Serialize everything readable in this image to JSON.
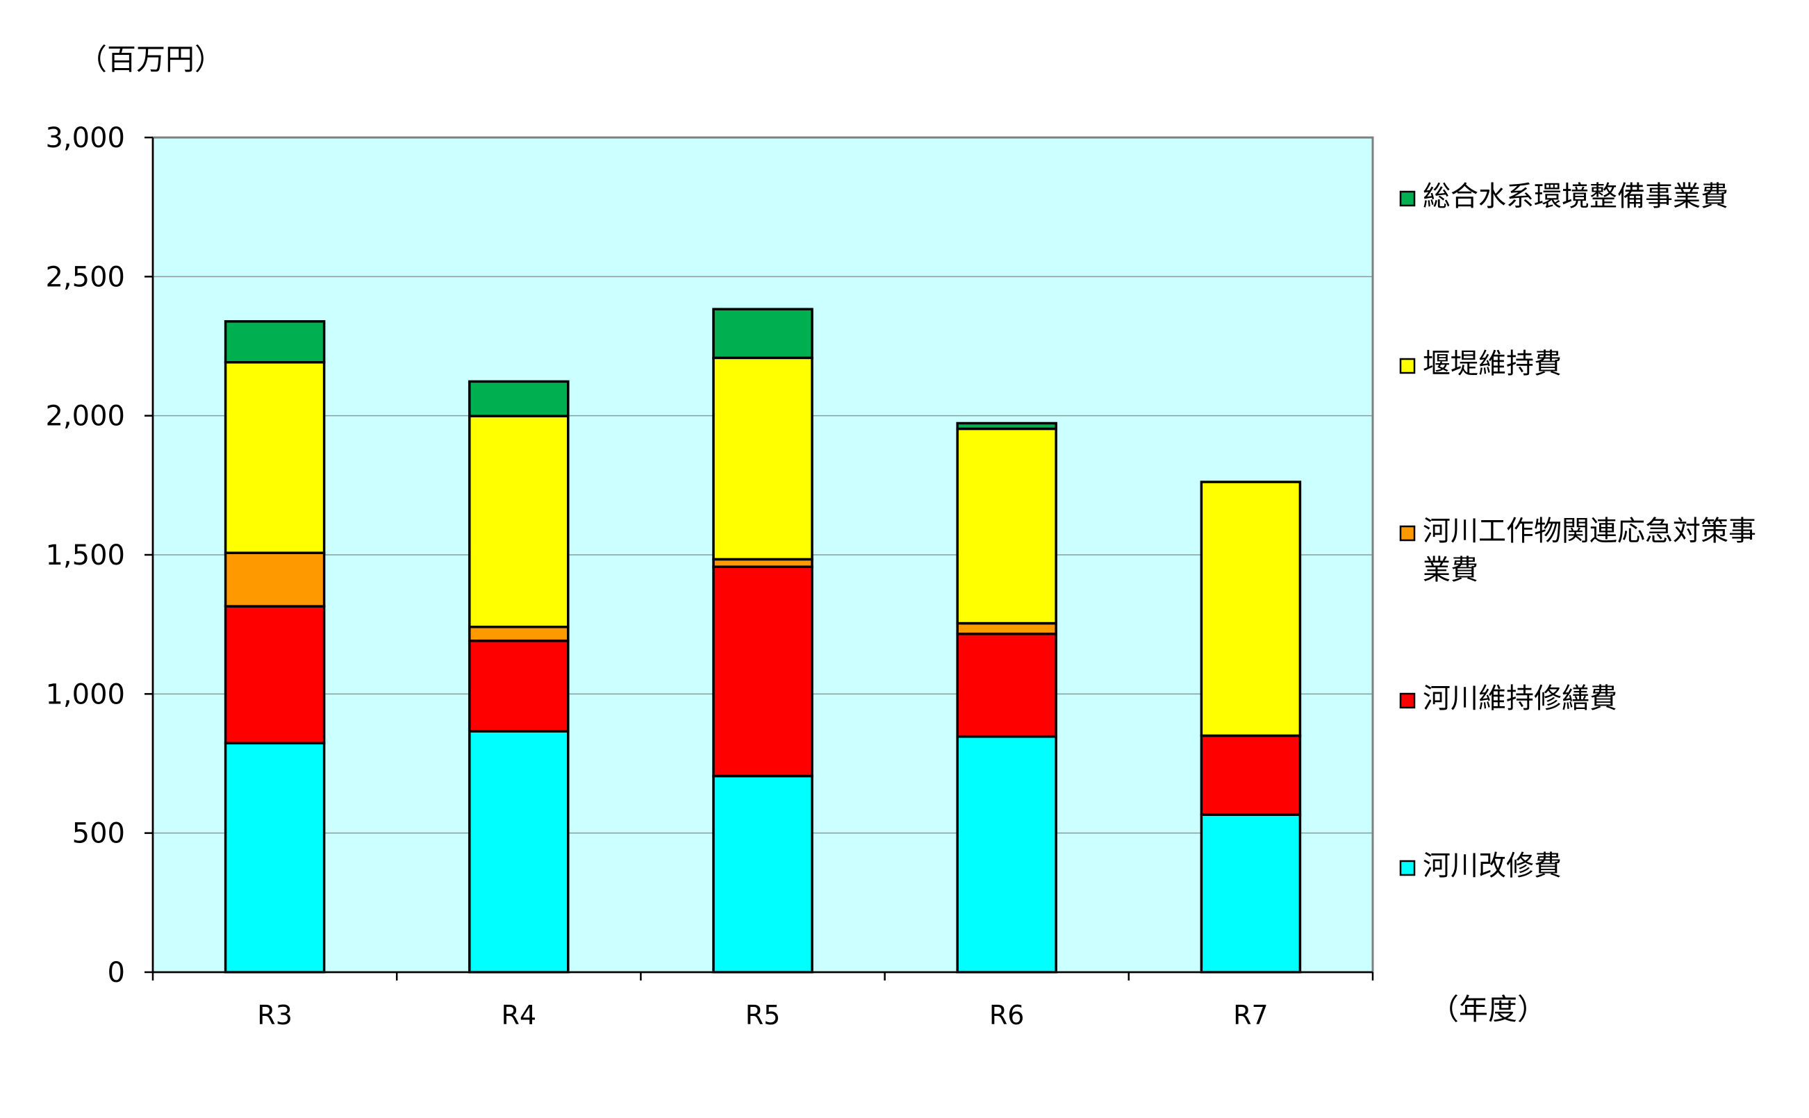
{
  "chart_data": {
    "type": "bar",
    "stacked": true,
    "y_unit_label": "（百万円）",
    "x_unit_label": "（年度）",
    "categories": [
      "R3",
      "R4",
      "R5",
      "R6",
      "R7"
    ],
    "ylim": [
      0,
      3000
    ],
    "yticks": [
      0,
      500,
      1000,
      1500,
      2000,
      2500,
      3000
    ],
    "ytick_labels": [
      "0",
      "500",
      "1,000",
      "1,500",
      "2,000",
      "2,500",
      "3,000"
    ],
    "grid": true,
    "plot_background": "#ccffff",
    "legend_position": "right",
    "series": [
      {
        "name": "河川改修費",
        "color": "#00ffff",
        "values": [
          823,
          866,
          705,
          847,
          566
        ]
      },
      {
        "name": "河川維持修繕費",
        "color": "#ff0000",
        "values": [
          492,
          325,
          752,
          369,
          284
        ]
      },
      {
        "name": "河川工作物関連応急対策事業費",
        "color": "#ff9900",
        "values": [
          192,
          50,
          27,
          38,
          0
        ]
      },
      {
        "name": "堰堤維持費",
        "color": "#ffff00",
        "values": [
          685,
          758,
          724,
          699,
          912
        ]
      },
      {
        "name": "総合水系環境整備事業費",
        "color": "#00b050",
        "values": [
          147,
          124,
          175,
          20,
          0
        ]
      }
    ],
    "legend_lines": [
      [
        "総合水系環境整備事業費"
      ],
      [
        "堰堤維持費"
      ],
      [
        "河川工作物関連応急対策事",
        "業費"
      ],
      [
        "河川維持修繕費"
      ],
      [
        "河川改修費"
      ]
    ]
  }
}
